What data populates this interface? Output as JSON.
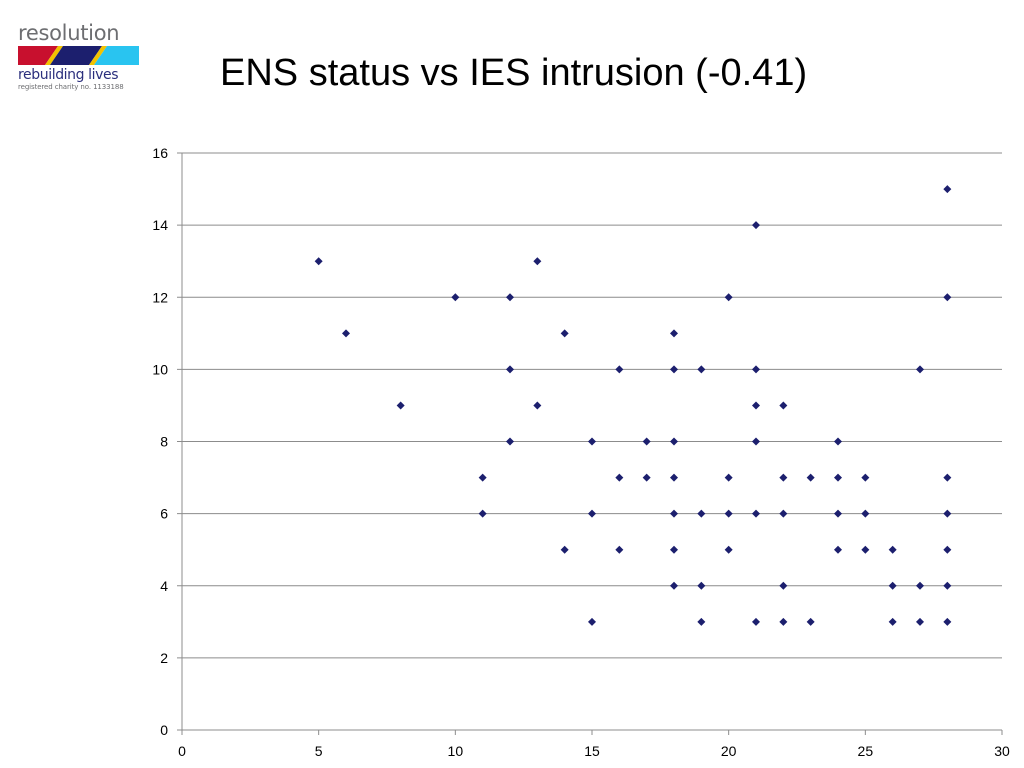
{
  "logo": {
    "name": "resolution",
    "tagline": "rebuilding lives",
    "charity": "registered charity no. 1133188",
    "colors": {
      "red": "#c8102e",
      "navy": "#1c1f6e",
      "yellow": "#f2c200",
      "cyan": "#29c4f0"
    }
  },
  "title": "ENS status vs IES intrusion (-0.41)",
  "chart_data": {
    "type": "scatter",
    "title": "",
    "xlabel": "",
    "ylabel": "",
    "xlim": [
      0,
      30
    ],
    "ylim": [
      0,
      16
    ],
    "x_ticks": [
      0,
      5,
      10,
      15,
      20,
      25,
      30
    ],
    "y_ticks": [
      0,
      2,
      4,
      6,
      8,
      10,
      12,
      14,
      16
    ],
    "grid": "horizontal",
    "legend": "none",
    "marker_color": "#1c1f6e",
    "points": [
      [
        5,
        13
      ],
      [
        6,
        11
      ],
      [
        8,
        9
      ],
      [
        10,
        12
      ],
      [
        11,
        7
      ],
      [
        11,
        6
      ],
      [
        12,
        12
      ],
      [
        12,
        10
      ],
      [
        12,
        8
      ],
      [
        13,
        13
      ],
      [
        13,
        9
      ],
      [
        14,
        11
      ],
      [
        14,
        5
      ],
      [
        15,
        8
      ],
      [
        15,
        6
      ],
      [
        15,
        3
      ],
      [
        16,
        10
      ],
      [
        16,
        7
      ],
      [
        16,
        5
      ],
      [
        17,
        8
      ],
      [
        17,
        7
      ],
      [
        18,
        11
      ],
      [
        18,
        10
      ],
      [
        18,
        8
      ],
      [
        18,
        7
      ],
      [
        18,
        6
      ],
      [
        18,
        5
      ],
      [
        18,
        4
      ],
      [
        19,
        10
      ],
      [
        19,
        6
      ],
      [
        19,
        4
      ],
      [
        19,
        3
      ],
      [
        20,
        12
      ],
      [
        20,
        7
      ],
      [
        20,
        6
      ],
      [
        20,
        5
      ],
      [
        21,
        14
      ],
      [
        21,
        10
      ],
      [
        21,
        9
      ],
      [
        21,
        8
      ],
      [
        21,
        6
      ],
      [
        21,
        3
      ],
      [
        22,
        9
      ],
      [
        22,
        7
      ],
      [
        22,
        6
      ],
      [
        22,
        4
      ],
      [
        22,
        3
      ],
      [
        23,
        7
      ],
      [
        23,
        3
      ],
      [
        24,
        8
      ],
      [
        24,
        7
      ],
      [
        24,
        6
      ],
      [
        24,
        5
      ],
      [
        25,
        7
      ],
      [
        25,
        6
      ],
      [
        25,
        5
      ],
      [
        26,
        5
      ],
      [
        26,
        4
      ],
      [
        26,
        3
      ],
      [
        27,
        10
      ],
      [
        27,
        4
      ],
      [
        27,
        3
      ],
      [
        28,
        15
      ],
      [
        28,
        12
      ],
      [
        28,
        7
      ],
      [
        28,
        6
      ],
      [
        28,
        5
      ],
      [
        28,
        4
      ],
      [
        28,
        3
      ]
    ]
  }
}
